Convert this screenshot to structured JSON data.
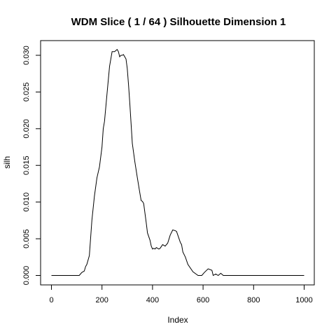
{
  "chart_data": {
    "type": "line",
    "title": "WDM Slice ( 1 / 64 )  Silhouette Dimension 1",
    "xlabel": "Index",
    "ylabel": "silh",
    "xlim": [
      0,
      1000
    ],
    "ylim": [
      -0.001,
      0.031
    ],
    "x_ticks": [
      0,
      200,
      400,
      600,
      800,
      1000
    ],
    "x_tick_labels": [
      "0",
      "200",
      "400",
      "600",
      "800",
      "1000"
    ],
    "y_ticks": [
      0,
      0.005,
      0.01,
      0.015,
      0.02,
      0.025,
      0.03
    ],
    "y_tick_labels": [
      "0.000",
      "0.005",
      "0.010",
      "0.015",
      "0.020",
      "0.025",
      "0.030"
    ],
    "grid": false,
    "series": [
      {
        "color": "#000000",
        "x": [
          0,
          110,
          120,
          130,
          135,
          140,
          150,
          160,
          170,
          180,
          190,
          200,
          205,
          210,
          220,
          230,
          240,
          250,
          260,
          265,
          270,
          275,
          280,
          285,
          290,
          295,
          300,
          305,
          310,
          320,
          330,
          340,
          350,
          355,
          360,
          365,
          370,
          375,
          380,
          390,
          395,
          400,
          405,
          410,
          415,
          420,
          425,
          430,
          440,
          450,
          460,
          470,
          480,
          490,
          495,
          500,
          505,
          510,
          515,
          520,
          530,
          540,
          560,
          580,
          595,
          605,
          620,
          635,
          640,
          650,
          660,
          670,
          680,
          690,
          700,
          1000
        ],
        "y": [
          0.0,
          0.0,
          0.0004,
          0.0006,
          0.0012,
          0.0015,
          0.0027,
          0.0075,
          0.0108,
          0.0133,
          0.0148,
          0.0175,
          0.02,
          0.021,
          0.0248,
          0.0285,
          0.0305,
          0.0305,
          0.0308,
          0.0305,
          0.0298,
          0.03,
          0.03,
          0.0301,
          0.0298,
          0.0295,
          0.0282,
          0.026,
          0.0235,
          0.018,
          0.0155,
          0.0133,
          0.0112,
          0.0102,
          0.0101,
          0.0098,
          0.0085,
          0.0072,
          0.0058,
          0.0048,
          0.004,
          0.0036,
          0.0037,
          0.0036,
          0.0038,
          0.0037,
          0.0036,
          0.0037,
          0.0042,
          0.004,
          0.0044,
          0.0055,
          0.0062,
          0.0061,
          0.006,
          0.0055,
          0.005,
          0.0045,
          0.0042,
          0.0032,
          0.0025,
          0.0015,
          0.0005,
          0.0,
          0.0,
          0.0004,
          0.0009,
          0.0007,
          0.0,
          0.0002,
          0.0,
          0.0003,
          0.0,
          0.0,
          0.0,
          0.0
        ]
      }
    ]
  }
}
